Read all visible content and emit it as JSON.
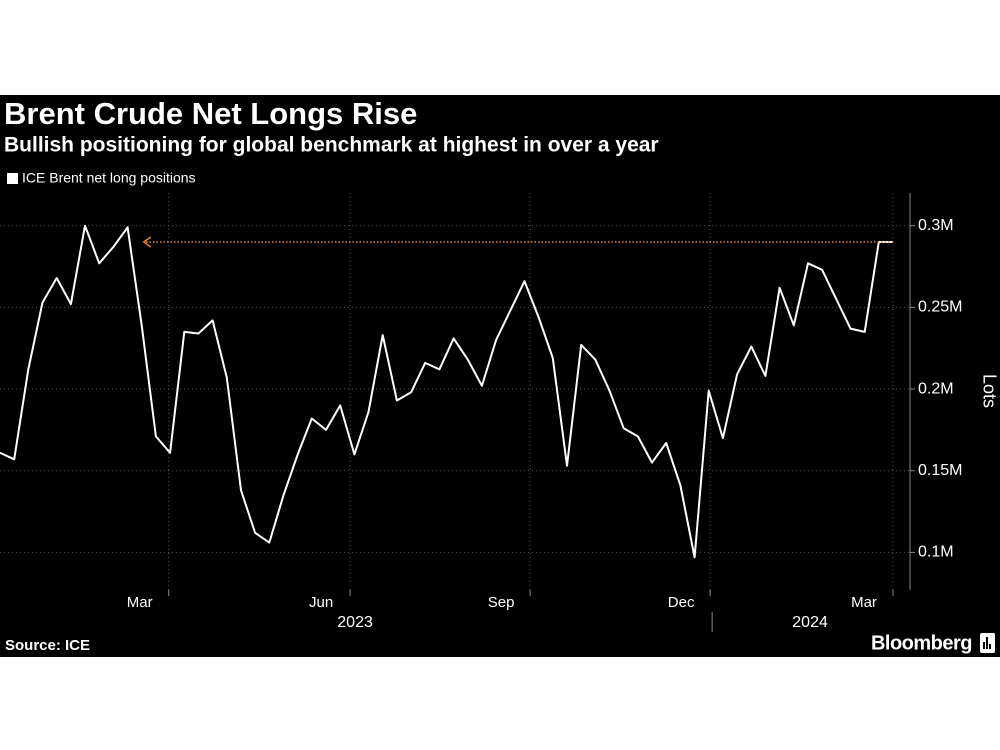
{
  "chart_data": {
    "type": "line",
    "title": "Brent Crude Net Longs Rise",
    "subtitle": "Bullish positioning for global benchmark at highest in over a year",
    "y_axis_label": "Lots",
    "source": "Source: ICE",
    "brand": "Bloomberg",
    "series": [
      {
        "name": "ICE Brent net long positions",
        "color": "#ffffff",
        "values": [
          161000,
          157000,
          212000,
          253000,
          268000,
          252000,
          300000,
          277000,
          287000,
          299000,
          239000,
          171000,
          161000,
          235000,
          234000,
          242000,
          207000,
          138000,
          112000,
          106000,
          135000,
          160000,
          182000,
          175000,
          190000,
          160000,
          186000,
          233000,
          193000,
          198000,
          216000,
          212000,
          231000,
          218000,
          202000,
          230000,
          248000,
          266000,
          244000,
          219000,
          153000,
          227000,
          218000,
          199000,
          176000,
          171000,
          155000,
          167000,
          141000,
          97000,
          199000,
          170000,
          209000,
          226000,
          208000,
          262000,
          239000,
          277000,
          273000,
          255000,
          237000,
          235000,
          290000,
          290000
        ]
      }
    ],
    "ylim": [
      77000,
      320000
    ],
    "yticks": [
      {
        "value": 100000,
        "label": "0.1M"
      },
      {
        "value": 150000,
        "label": "0.15M"
      },
      {
        "value": 200000,
        "label": "0.2M"
      },
      {
        "value": 250000,
        "label": "0.25M"
      },
      {
        "value": 300000,
        "label": "0.3M"
      }
    ],
    "xlim": [
      0,
      64
    ],
    "xticks": [
      {
        "value": 11.9,
        "label": "Mar"
      },
      {
        "value": 24.7,
        "label": "Jun"
      },
      {
        "value": 37.4,
        "label": "Sep"
      },
      {
        "value": 50.1,
        "label": "Dec"
      },
      {
        "value": 63,
        "label": "Mar"
      }
    ],
    "year_labels": [
      "2023",
      "2024"
    ],
    "annotation_color": "#e0883a",
    "grid": true
  }
}
